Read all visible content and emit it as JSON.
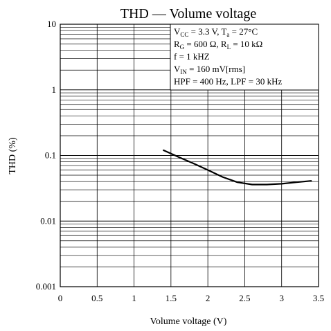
{
  "chart_data": {
    "type": "line",
    "title": "THD — Volume voltage",
    "xlabel": "Volume voltage  (V)",
    "ylabel": "THD  (%)",
    "xlim": [
      0,
      3.5
    ],
    "ylim": [
      0.001,
      10
    ],
    "y_scale": "log",
    "grid": true,
    "x_ticks": [
      "0",
      "0.5",
      "1",
      "1.5",
      "2",
      "2.5",
      "3",
      "3.5"
    ],
    "y_ticks": [
      "0.001",
      "0.01",
      "0.1",
      "1",
      "10"
    ],
    "annotations": [
      "VCC = 3.3 V, Ta = 27°C",
      "RG = 600 Ω, RL = 10 kΩ",
      "f = 1 kHZ",
      "VIN = 160 mV[rms]",
      "HPF = 400 Hz, LPF = 30 kHz"
    ],
    "series": [
      {
        "x": [
          1.4,
          1.6,
          1.8,
          2.0,
          2.2,
          2.4,
          2.6,
          2.8,
          3.0,
          3.2,
          3.4
        ],
        "y": [
          0.12,
          0.095,
          0.076,
          0.06,
          0.047,
          0.039,
          0.036,
          0.036,
          0.037,
          0.039,
          0.041
        ]
      }
    ]
  }
}
